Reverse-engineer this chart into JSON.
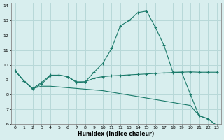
{
  "xlabel": "Humidex (Indice chaleur)",
  "xlim": [
    -0.5,
    23.5
  ],
  "ylim": [
    6,
    14.2
  ],
  "yticks": [
    6,
    7,
    8,
    9,
    10,
    11,
    12,
    13,
    14
  ],
  "xticks": [
    0,
    1,
    2,
    3,
    4,
    5,
    6,
    7,
    8,
    9,
    10,
    11,
    12,
    13,
    14,
    15,
    16,
    17,
    18,
    19,
    20,
    21,
    22,
    23
  ],
  "background_color": "#d8eeee",
  "grid_color": "#b8d8d8",
  "line_color": "#1a7a6a",
  "series": [
    {
      "x": [
        0,
        1,
        2,
        3,
        4,
        5,
        6,
        7,
        8,
        9,
        10,
        11,
        12,
        13,
        14,
        15,
        16,
        17,
        18,
        19,
        20,
        21,
        22,
        23
      ],
      "y": [
        9.6,
        8.9,
        8.4,
        8.8,
        9.3,
        9.3,
        9.2,
        8.8,
        8.85,
        9.5,
        10.1,
        11.1,
        12.65,
        13.0,
        13.55,
        13.65,
        12.55,
        11.3,
        9.5,
        9.5,
        8.0,
        6.55,
        6.35,
        5.9
      ],
      "marker": "+"
    },
    {
      "x": [
        0,
        1,
        2,
        3,
        4,
        5,
        6,
        7,
        8,
        9,
        10,
        11,
        12,
        13,
        14,
        15,
        16,
        17,
        18,
        19,
        20,
        21,
        22,
        23
      ],
      "y": [
        9.6,
        8.9,
        8.35,
        8.7,
        9.25,
        9.3,
        9.2,
        8.85,
        8.85,
        9.1,
        9.2,
        9.25,
        9.28,
        9.32,
        9.35,
        9.38,
        9.42,
        9.45,
        9.47,
        9.5,
        9.52,
        9.5,
        9.5,
        9.5
      ],
      "marker": "+"
    },
    {
      "x": [
        0,
        1,
        2,
        3,
        4,
        5,
        6,
        7,
        8,
        9,
        10,
        11,
        12,
        13,
        14,
        15,
        16,
        17,
        18,
        19,
        20,
        21,
        22,
        23
      ],
      "y": [
        9.6,
        8.9,
        8.4,
        8.55,
        8.55,
        8.5,
        8.45,
        8.4,
        8.35,
        8.3,
        8.25,
        8.15,
        8.05,
        7.95,
        7.85,
        7.75,
        7.65,
        7.55,
        7.45,
        7.35,
        7.25,
        6.55,
        6.35,
        5.9
      ],
      "marker": null
    }
  ]
}
